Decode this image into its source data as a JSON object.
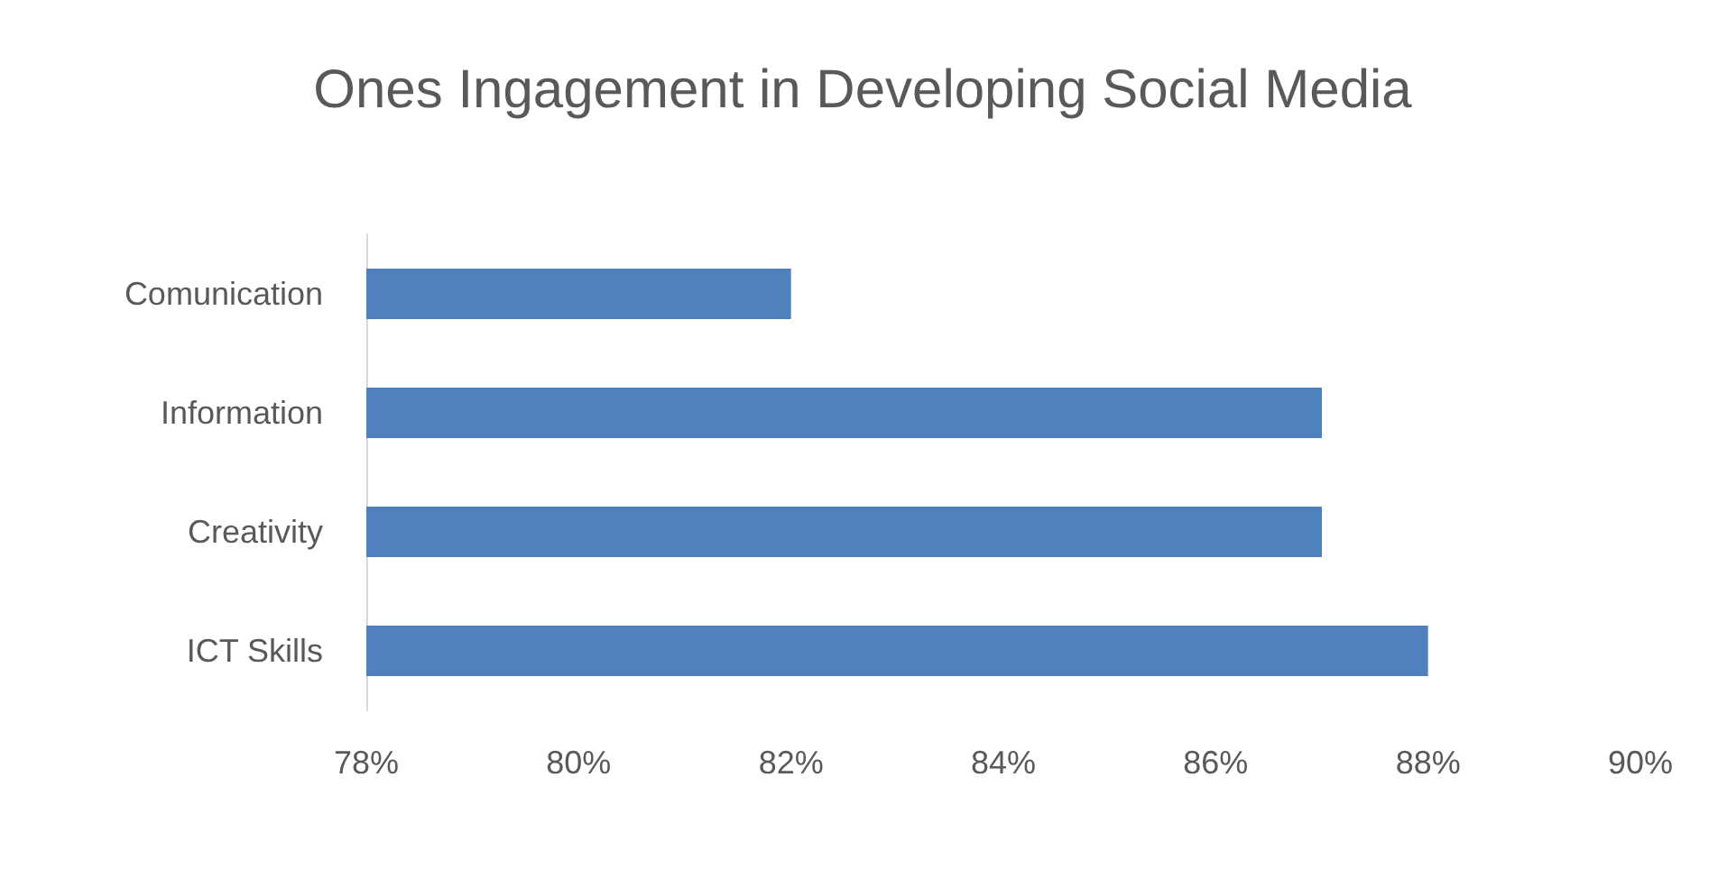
{
  "chart_data": {
    "type": "bar",
    "orientation": "horizontal",
    "title": "Ones Ingagement in Developing Social Media",
    "categories": [
      "Comunication",
      "Information",
      "Creativity",
      "ICT Skills"
    ],
    "values": [
      82,
      87,
      87,
      88
    ],
    "color": "#4f81bd",
    "xlim": [
      78,
      90
    ],
    "xticks": [
      {
        "value": 78,
        "label": "78%"
      },
      {
        "value": 80,
        "label": "80%"
      },
      {
        "value": 82,
        "label": "82%"
      },
      {
        "value": 84,
        "label": "84%"
      },
      {
        "value": 86,
        "label": "86%"
      },
      {
        "value": 88,
        "label": "88%"
      },
      {
        "value": 90,
        "label": "90%"
      }
    ],
    "grid": false
  }
}
